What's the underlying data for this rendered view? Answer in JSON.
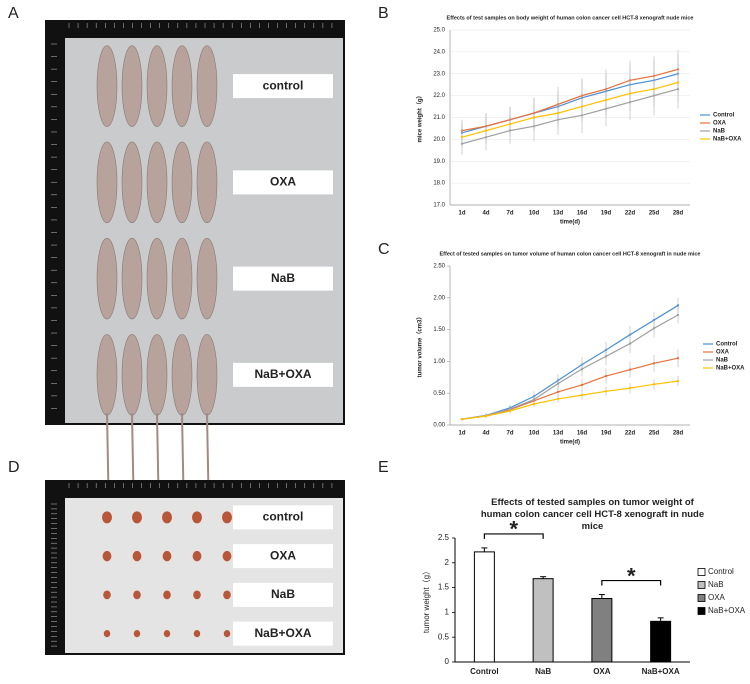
{
  "panel_labels": [
    "A",
    "B",
    "C",
    "D",
    "E"
  ],
  "photo_A": {
    "labels": [
      "control",
      "OXA",
      "NaB",
      "NaB+OXA"
    ]
  },
  "photo_D": {
    "labels": [
      "control",
      "OXA",
      "NaB",
      "NaB+OXA"
    ]
  },
  "chart_data": [
    {
      "type": "line",
      "title": "Effects of test samples on body weight of human colon cancer cell HCT-8 xenograft nude mice",
      "x_label": "time(d)",
      "y_label": "mice weight（g）",
      "grid": true,
      "categories": [
        "1d",
        "4d",
        "7d",
        "10d",
        "13d",
        "16d",
        "19d",
        "22d",
        "25d",
        "28d"
      ],
      "ylim": [
        17,
        25
      ],
      "yticks": [
        {
          "value": 17,
          "label": "17.0"
        },
        {
          "value": 18,
          "label": "18.0"
        },
        {
          "value": 19,
          "label": "19.0"
        },
        {
          "value": 20,
          "label": "20.0"
        },
        {
          "value": 21,
          "label": "21.0"
        },
        {
          "value": 22,
          "label": "22.0"
        },
        {
          "value": 23,
          "label": "23.0"
        },
        {
          "value": 24,
          "label": "24.0"
        },
        {
          "value": 25,
          "label": "25.0"
        }
      ],
      "series": [
        {
          "name": "Control",
          "color": "#4a90d9",
          "values": [
            20.3,
            20.6,
            20.9,
            21.2,
            21.5,
            21.9,
            22.2,
            22.5,
            22.7,
            23.0
          ],
          "errors": [
            0.5,
            0.6,
            0.6,
            0.7,
            0.7,
            0.8,
            0.8,
            0.9,
            0.9,
            0.9
          ]
        },
        {
          "name": "OXA",
          "color": "#e8703a",
          "values": [
            20.4,
            20.6,
            20.9,
            21.2,
            21.6,
            22.0,
            22.3,
            22.7,
            22.9,
            23.2
          ],
          "errors": [
            0.5,
            0.6,
            0.6,
            0.7,
            0.8,
            0.8,
            0.9,
            0.9,
            0.9,
            0.9
          ]
        },
        {
          "name": "NaB",
          "color": "#a0a0a0",
          "values": [
            19.8,
            20.1,
            20.4,
            20.6,
            20.9,
            21.1,
            21.4,
            21.7,
            22.0,
            22.3
          ],
          "errors": [
            0.5,
            0.6,
            0.6,
            0.7,
            0.7,
            0.8,
            0.8,
            0.8,
            0.9,
            0.9
          ]
        },
        {
          "name": "NaB+OXA",
          "color": "#ffc000",
          "values": [
            20.1,
            20.4,
            20.7,
            21.0,
            21.2,
            21.5,
            21.8,
            22.1,
            22.3,
            22.6
          ],
          "errors": [
            0.5,
            0.6,
            0.6,
            0.6,
            0.7,
            0.7,
            0.8,
            0.8,
            0.8,
            0.9
          ]
        }
      ]
    },
    {
      "type": "line",
      "title": "Effect of tested samples on tumor volume of human colon cancer cell HCT-8 xenograft in nude mice",
      "x_label": "time(d)",
      "y_label": "tumor volume（cm3）",
      "grid": false,
      "categories": [
        "1d",
        "4d",
        "7d",
        "10d",
        "13d",
        "16d",
        "19d",
        "22d",
        "25d",
        "28d"
      ],
      "ylim": [
        0,
        2.5
      ],
      "yticks": [
        {
          "value": 0,
          "label": "0.00"
        },
        {
          "value": 0.5,
          "label": "0.50"
        },
        {
          "value": 1,
          "label": "1.00"
        },
        {
          "value": 1.5,
          "label": "1.50"
        },
        {
          "value": 2,
          "label": "2.00"
        },
        {
          "value": 2.5,
          "label": "2.50"
        }
      ],
      "series": [
        {
          "name": "Control",
          "color": "#4a90d9",
          "values": [
            0.09,
            0.15,
            0.27,
            0.45,
            0.7,
            0.95,
            1.18,
            1.42,
            1.65,
            1.88
          ],
          "errors": [
            0.02,
            0.03,
            0.05,
            0.08,
            0.1,
            0.12,
            0.13,
            0.14,
            0.13,
            0.12
          ]
        },
        {
          "name": "OXA",
          "color": "#e8703a",
          "values": [
            0.09,
            0.15,
            0.24,
            0.38,
            0.52,
            0.63,
            0.77,
            0.87,
            0.97,
            1.05
          ],
          "errors": [
            0.02,
            0.03,
            0.04,
            0.07,
            0.09,
            0.1,
            0.12,
            0.13,
            0.13,
            0.14
          ]
        },
        {
          "name": "NaB",
          "color": "#a0a0a0",
          "values": [
            0.09,
            0.15,
            0.25,
            0.4,
            0.65,
            0.88,
            1.08,
            1.28,
            1.52,
            1.73
          ],
          "errors": [
            0.02,
            0.03,
            0.05,
            0.08,
            0.1,
            0.12,
            0.14,
            0.15,
            0.14,
            0.13
          ]
        },
        {
          "name": "NaB+OXA",
          "color": "#ffc000",
          "values": [
            0.09,
            0.14,
            0.22,
            0.33,
            0.41,
            0.47,
            0.53,
            0.58,
            0.64,
            0.69
          ],
          "errors": [
            0.02,
            0.03,
            0.04,
            0.05,
            0.06,
            0.07,
            0.07,
            0.08,
            0.08,
            0.08
          ]
        }
      ]
    },
    {
      "type": "bar",
      "title": "Effects of tested samples on tumor weight of human colon cancer cell HCT-8 xenograft in nude mice",
      "y_label": "tumor weight（g）",
      "categories": [
        "Control",
        "NaB",
        "OXA",
        "NaB+OXA"
      ],
      "values": [
        2.22,
        1.68,
        1.28,
        0.82
      ],
      "errors": [
        0.08,
        0.04,
        0.08,
        0.07
      ],
      "colors": [
        "#ffffff",
        "#c0c0c0",
        "#808080",
        "#000000"
      ],
      "ylim": [
        0,
        2.5
      ],
      "yticks": [
        0,
        0.5,
        1,
        1.5,
        2,
        2.5
      ],
      "annotations": [
        "*",
        "*"
      ]
    }
  ]
}
